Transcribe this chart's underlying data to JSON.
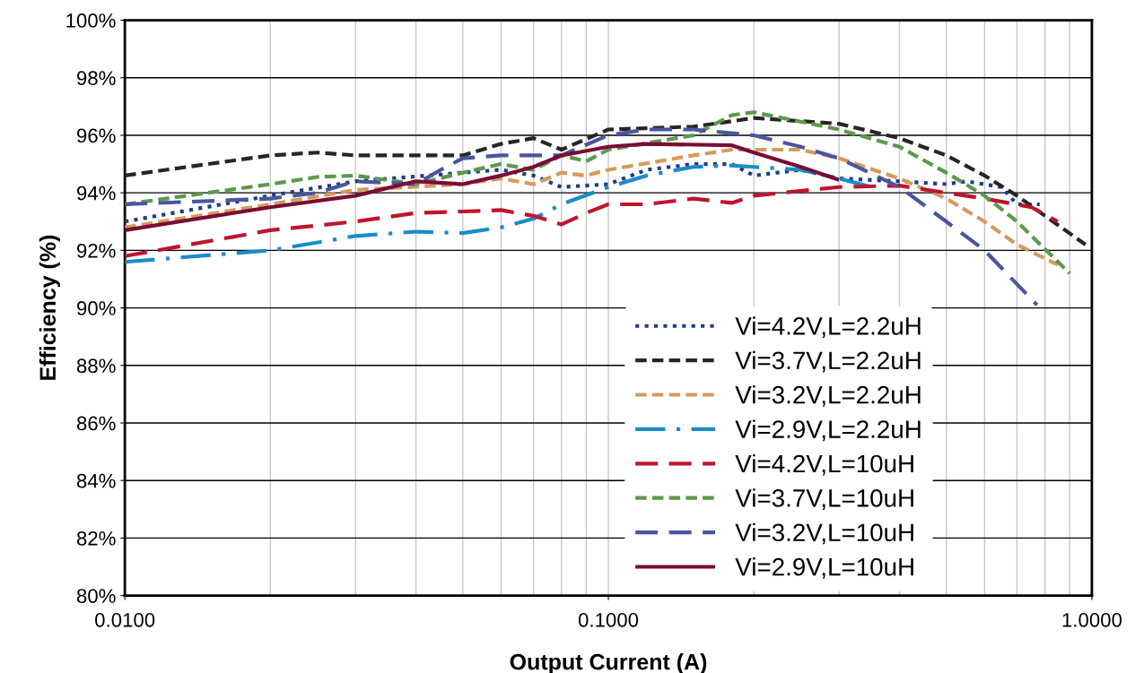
{
  "chart_data": {
    "type": "line",
    "xlabel": "Output Current (A)",
    "ylabel": "Efficiency (%)",
    "log": "x",
    "xlim": [
      0.01,
      1.0
    ],
    "xticks": [
      {
        "value": 0.01,
        "label": "0.0100"
      },
      {
        "value": 0.1,
        "label": "0.1000"
      },
      {
        "value": 1.0,
        "label": "1.0000"
      }
    ],
    "ylim": [
      80,
      100
    ],
    "yticks": [
      {
        "value": 80,
        "label": "80%"
      },
      {
        "value": 82,
        "label": "82%"
      },
      {
        "value": 84,
        "label": "84%"
      },
      {
        "value": 86,
        "label": "86%"
      },
      {
        "value": 88,
        "label": "88%"
      },
      {
        "value": 90,
        "label": "90%"
      },
      {
        "value": 92,
        "label": "92%"
      },
      {
        "value": 94,
        "label": "94%"
      },
      {
        "value": 96,
        "label": "96%"
      },
      {
        "value": 98,
        "label": "98%"
      },
      {
        "value": 100,
        "label": "100%"
      }
    ],
    "grid": true,
    "legend": "bottom right",
    "marker": "none",
    "series": [
      {
        "name": "Vi=4.2V,L=2.2uH",
        "color": "#1f3c88",
        "line_style": "dotted",
        "x": [
          0.01,
          0.02,
          0.03,
          0.05,
          0.06,
          0.07,
          0.08,
          0.1,
          0.12,
          0.15,
          0.18,
          0.2,
          0.25,
          0.3,
          0.4,
          0.5,
          0.55,
          0.65,
          0.7,
          0.78
        ],
        "values": [
          93.0,
          93.9,
          94.4,
          94.7,
          94.8,
          94.6,
          94.2,
          94.3,
          94.8,
          95.0,
          95.0,
          94.6,
          94.8,
          94.5,
          94.4,
          94.3,
          94.4,
          94.2,
          93.6,
          93.6
        ]
      },
      {
        "name": "Vi=3.7V,L=2.2uH",
        "color": "#262626",
        "line_style": "dashed",
        "x": [
          0.01,
          0.02,
          0.025,
          0.03,
          0.05,
          0.06,
          0.07,
          0.08,
          0.1,
          0.15,
          0.2,
          0.3,
          0.4,
          0.5,
          0.6,
          0.7,
          0.8,
          0.97
        ],
        "values": [
          94.6,
          95.3,
          95.4,
          95.3,
          95.3,
          95.7,
          95.9,
          95.5,
          96.2,
          96.3,
          96.6,
          96.4,
          95.9,
          95.3,
          94.6,
          93.9,
          93.2,
          92.2
        ]
      },
      {
        "name": "Vi=3.2V,L=2.2uH",
        "color": "#d69a5c",
        "line_style": "dashed",
        "x": [
          0.01,
          0.02,
          0.03,
          0.05,
          0.06,
          0.07,
          0.08,
          0.09,
          0.1,
          0.15,
          0.18,
          0.25,
          0.3,
          0.4,
          0.5,
          0.6,
          0.7,
          0.85
        ],
        "values": [
          92.8,
          93.6,
          94.1,
          94.3,
          94.5,
          94.3,
          94.7,
          94.6,
          94.8,
          95.3,
          95.5,
          95.5,
          95.2,
          94.5,
          93.8,
          93.0,
          92.2,
          91.5
        ]
      },
      {
        "name": "Vi=2.9V,L=2.2uH",
        "color": "#1a8cc8",
        "line_style": "dashdot",
        "x": [
          0.01,
          0.02,
          0.03,
          0.04,
          0.05,
          0.06,
          0.07,
          0.08,
          0.1,
          0.12,
          0.15,
          0.18,
          0.2,
          0.25,
          0.3,
          0.35
        ],
        "values": [
          91.6,
          92.0,
          92.5,
          92.65,
          92.6,
          92.8,
          93.1,
          93.6,
          94.2,
          94.6,
          94.9,
          94.95,
          94.9,
          94.8,
          94.5,
          94.2
        ]
      },
      {
        "name": "Vi=4.2V,L=10uH",
        "color": "#c0142e",
        "line_style": "longdash",
        "x": [
          0.01,
          0.02,
          0.03,
          0.04,
          0.05,
          0.06,
          0.07,
          0.08,
          0.09,
          0.1,
          0.12,
          0.15,
          0.18,
          0.2,
          0.3,
          0.4,
          0.5,
          0.6,
          0.75,
          0.85
        ],
        "values": [
          91.8,
          92.7,
          93.0,
          93.3,
          93.35,
          93.4,
          93.2,
          92.9,
          93.3,
          93.6,
          93.6,
          93.8,
          93.65,
          93.9,
          94.2,
          94.25,
          94.0,
          93.8,
          93.5,
          93.0
        ]
      },
      {
        "name": "Vi=3.7V,L=10uH",
        "color": "#5a9a4a",
        "line_style": "dashed",
        "x": [
          0.01,
          0.02,
          0.025,
          0.03,
          0.04,
          0.05,
          0.06,
          0.07,
          0.08,
          0.09,
          0.1,
          0.15,
          0.18,
          0.2,
          0.3,
          0.4,
          0.5,
          0.6,
          0.7,
          0.9
        ],
        "values": [
          93.6,
          94.3,
          94.55,
          94.6,
          94.3,
          94.7,
          95.0,
          94.8,
          95.3,
          95.1,
          95.5,
          96.0,
          96.7,
          96.8,
          96.2,
          95.6,
          94.7,
          93.9,
          93.0,
          91.2
        ]
      },
      {
        "name": "Vi=3.2V,L=10uH",
        "color": "#4a55a0",
        "line_style": "longdash",
        "x": [
          0.01,
          0.02,
          0.025,
          0.03,
          0.04,
          0.045,
          0.05,
          0.06,
          0.07,
          0.08,
          0.1,
          0.12,
          0.15,
          0.2,
          0.25,
          0.3,
          0.4,
          0.5,
          0.6,
          0.77
        ],
        "values": [
          93.6,
          93.8,
          94.0,
          94.4,
          94.3,
          94.8,
          95.2,
          95.3,
          95.3,
          95.3,
          96.0,
          96.2,
          96.2,
          96.0,
          95.6,
          95.2,
          94.2,
          93.0,
          92.0,
          90.1
        ]
      },
      {
        "name": "Vi=2.9V,L=10uH",
        "color": "#7a0c36",
        "line_style": "solid",
        "x": [
          0.01,
          0.02,
          0.03,
          0.04,
          0.05,
          0.06,
          0.07,
          0.08,
          0.1,
          0.12,
          0.18,
          0.2,
          0.25,
          0.3
        ],
        "values": [
          92.7,
          93.5,
          93.9,
          94.4,
          94.3,
          94.6,
          94.9,
          95.3,
          95.6,
          95.7,
          95.65,
          95.4,
          94.9,
          94.45
        ]
      }
    ]
  }
}
